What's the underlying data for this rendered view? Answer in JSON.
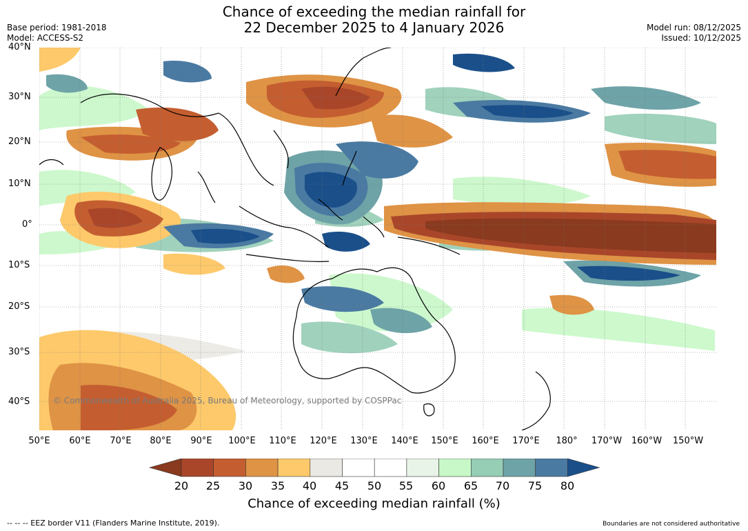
{
  "title_line1": "Chance of exceeding the median rainfall for",
  "title_line2": "22 December 2025 to 4 January 2026",
  "base_period": "Base period: 1981-2018",
  "model": "Model: ACCESS-S2",
  "model_run": "Model run: 08/12/2025",
  "issued": "Issued: 10/12/2025",
  "copyright": "© Commonwealth of Australia 2025, Bureau of Meteorology, supported by COSPPac",
  "lat_labels": [
    "40°N",
    "30°N",
    "20°N",
    "10°N",
    "0°",
    "10°S",
    "20°S",
    "30°S",
    "40°S"
  ],
  "lon_labels": [
    "50°E",
    "60°E",
    "70°E",
    "80°E",
    "90°E",
    "100°E",
    "110°E",
    "120°E",
    "130°E",
    "140°E",
    "150°E",
    "160°E",
    "170°E",
    "180°",
    "170°W",
    "160°W",
    "150°W"
  ],
  "colorbar": {
    "title": "Chance of exceeding median rainfall (%)",
    "ticks": [
      "20",
      "25",
      "30",
      "35",
      "40",
      "45",
      "50",
      "55",
      "60",
      "65",
      "70",
      "75",
      "80"
    ],
    "colors": [
      "#8a3a1e",
      "#a9462a",
      "#c45e30",
      "#df9345",
      "#fdc96b",
      "#ebe9e3",
      "#ffffff",
      "#ffffff",
      "#e8f4e8",
      "#c8f8c8",
      "#96cdb5",
      "#6ea3a7",
      "#4a7aa2",
      "#1a4f8a"
    ]
  },
  "footer_left": "--  --  -- EEZ border V11 (Flanders Marine Institute, 2019).",
  "footer_right": "Boundaries are not considered authoritative"
}
